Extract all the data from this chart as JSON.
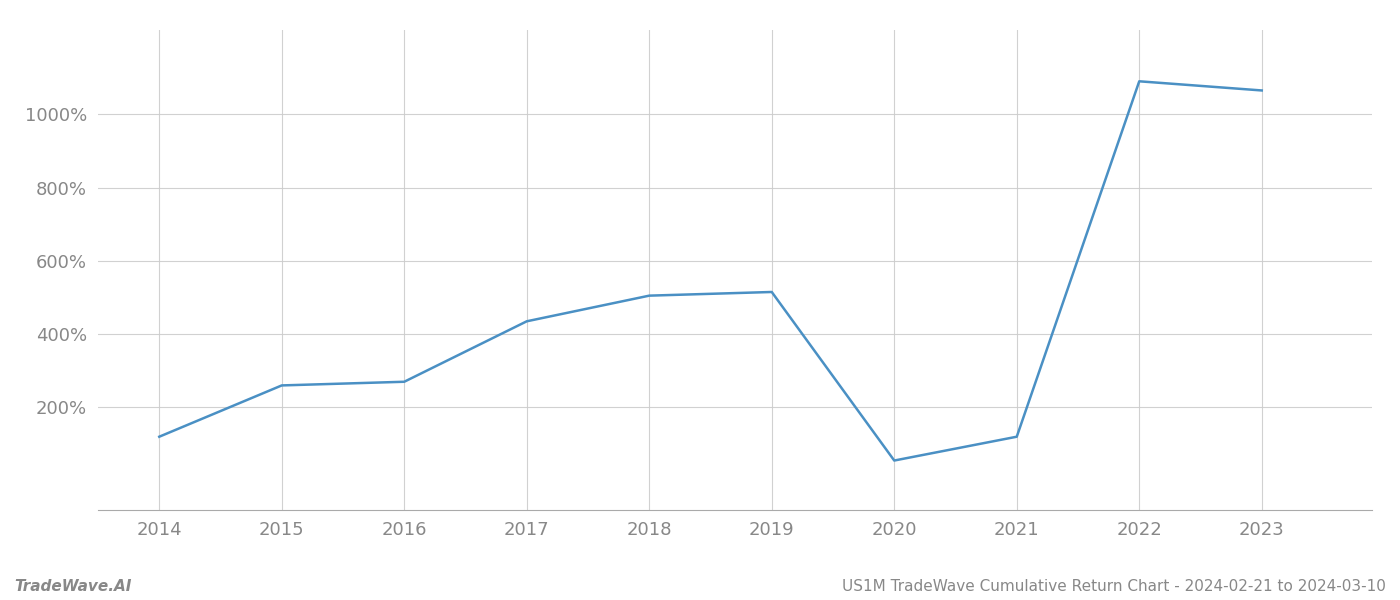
{
  "x_values": [
    2014,
    2015,
    2016,
    2017,
    2018,
    2019,
    2020,
    2021,
    2022,
    2023
  ],
  "y_values": [
    120,
    260,
    270,
    435,
    505,
    515,
    55,
    120,
    1090,
    1065
  ],
  "line_color": "#4a90c4",
  "line_width": 1.8,
  "background_color": "#ffffff",
  "grid_color": "#cccccc",
  "title": "US1M TradeWave Cumulative Return Chart - 2024-02-21 to 2024-03-10",
  "footer_left": "TradeWave.AI",
  "ylabel_ticks": [
    200,
    400,
    600,
    800,
    1000
  ],
  "xlim": [
    2013.5,
    2023.9
  ],
  "ylim": [
    -80,
    1230
  ],
  "tick_color": "#888888",
  "tick_fontsize": 13,
  "footer_fontsize": 11,
  "title_fontsize": 11
}
